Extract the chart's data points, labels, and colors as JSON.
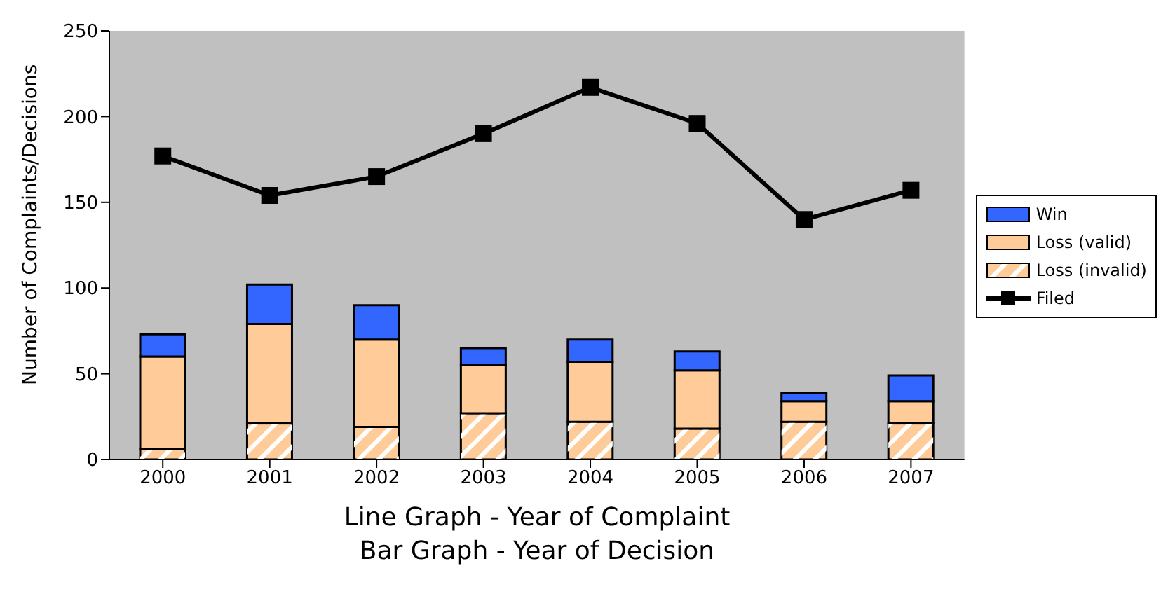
{
  "chart_data": {
    "type": "bar",
    "stacked": true,
    "categories": [
      "2000",
      "2001",
      "2002",
      "2003",
      "2004",
      "2005",
      "2006",
      "2007"
    ],
    "series": [
      {
        "name": "Loss (invalid)",
        "color": "#ffcc99",
        "values": [
          6,
          21,
          19,
          27,
          22,
          18,
          22,
          21
        ]
      },
      {
        "name": "Loss (valid)",
        "color": "#ffcc99",
        "values": [
          54,
          58,
          51,
          28,
          35,
          34,
          12,
          13
        ]
      },
      {
        "name": "Win",
        "color": "#3366ff",
        "values": [
          13,
          23,
          20,
          10,
          13,
          11,
          5,
          15
        ]
      },
      {
        "name": "Filed",
        "type": "line",
        "color": "#000000",
        "marker": "square",
        "values": [
          177,
          154,
          165,
          190,
          217,
          196,
          140,
          157
        ]
      }
    ],
    "ylabel": "Number of Complaints/Decisions",
    "xlabel": "Line Graph - Year of Complaint\nBar Graph - Year of Decision",
    "ylim": [
      0,
      250
    ],
    "yticks": [
      0,
      50,
      100,
      150,
      200,
      250
    ],
    "grid": false,
    "legend": "right"
  }
}
